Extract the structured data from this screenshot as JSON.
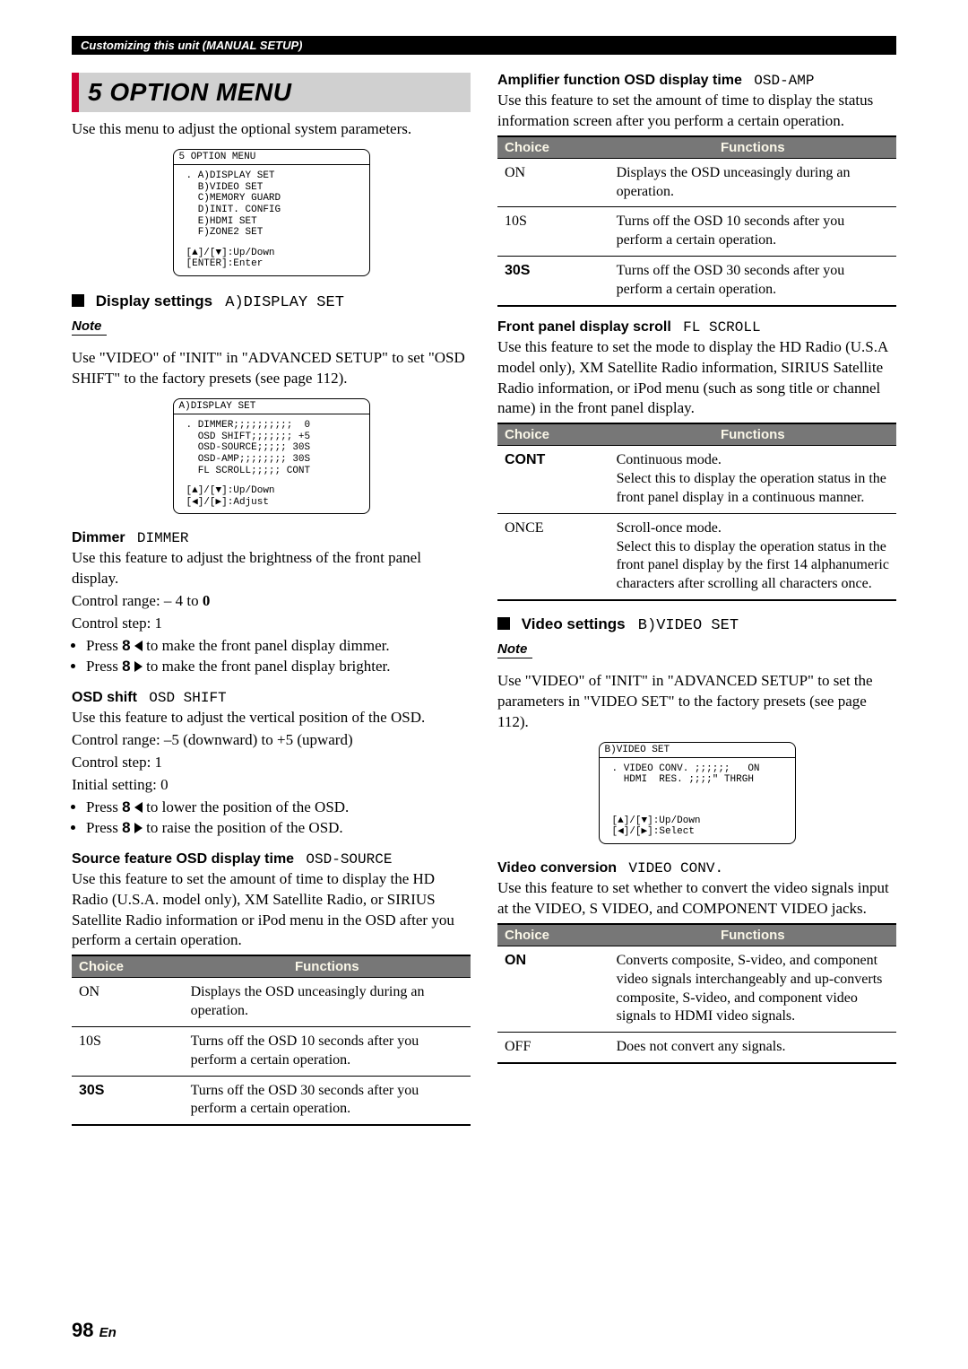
{
  "header": "Customizing this unit (MANUAL SETUP)",
  "title": "5 OPTION MENU",
  "intro_left": "Use this menu to adjust the optional system parameters.",
  "osd1": {
    "title": "5 OPTION MENU",
    "lines": ". A)DISPLAY SET\n  B)VIDEO SET\n  C)MEMORY GUARD\n  D)INIT. CONFIG\n  E)HDMI SET\n  F)ZONE2 SET",
    "nav": "[▲]/[▼]:Up/Down\n[ENTER]:Enter"
  },
  "display_settings": {
    "label": "Display settings",
    "mono": "A)DISPLAY SET"
  },
  "note1": "Note",
  "note1_body": "Use \"VIDEO\" of \"INIT\" in \"ADVANCED SETUP\" to set \"OSD SHIFT\" to the factory presets (see page 112).",
  "osd2": {
    "title": "A)DISPLAY SET",
    "lines": ". DIMMER;;;;;;;;;;  0\n  OSD SHIFT;;;;;;; +5\n  OSD-SOURCE;;;;; 30S\n  OSD-AMP;;;;;;;; 30S\n  FL SCROLL;;;;; CONT",
    "nav": "[▲]/[▼]:Up/Down\n[◀]/[▶]:Adjust"
  },
  "dimmer": {
    "title": "Dimmer",
    "mono": "DIMMER",
    "p1": "Use this feature to adjust the brightness of the front panel display.",
    "range_label": "Control range: – 4 to ",
    "range_bold": "0",
    "step": "Control step: 1",
    "b1a": "Press ",
    "b1key": "8",
    "b1b": " to make the front panel display dimmer.",
    "b2a": "Press ",
    "b2key": "8",
    "b2b": " to make the front panel display brighter."
  },
  "osd_shift": {
    "title": "OSD shift",
    "mono": "OSD SHIFT",
    "p1": "Use this feature to adjust the vertical position of the OSD.",
    "range": "Control range: –5 (downward) to +5 (upward)",
    "step": "Control step: 1",
    "init": "Initial setting: 0",
    "b1a": "Press ",
    "b1key": "8",
    "b1b": " to lower the position of the OSD.",
    "b2a": "Press ",
    "b2key": "8",
    "b2b": " to raise the position of the OSD."
  },
  "osd_source": {
    "title": "Source feature OSD display time",
    "mono": "OSD-SOURCE",
    "p1": "Use this feature to set the amount of time to display the HD Radio (U.S.A. model only), XM Satellite Radio, or SIRIUS Satellite Radio information or iPod menu in the OSD after you perform a certain operation."
  },
  "table_headers": {
    "choice": "Choice",
    "functions": "Functions"
  },
  "table_osd_source": [
    {
      "c": "ON",
      "bold": false,
      "f": "Displays the OSD unceasingly during an operation."
    },
    {
      "c": "10S",
      "bold": false,
      "f": "Turns off the OSD 10 seconds after you perform a certain operation."
    },
    {
      "c": "30S",
      "bold": true,
      "f": "Turns off the OSD 30 seconds after you perform a certain operation."
    }
  ],
  "osd_amp": {
    "title": "Amplifier function OSD display time",
    "mono": "OSD-AMP",
    "p1": "Use this feature to set the amount of time to display the status information screen after you perform a certain operation."
  },
  "table_osd_amp": [
    {
      "c": "ON",
      "bold": false,
      "f": "Displays the OSD unceasingly during an operation."
    },
    {
      "c": "10S",
      "bold": false,
      "f": "Turns off the OSD 10 seconds after you perform a certain operation."
    },
    {
      "c": "30S",
      "bold": true,
      "f": "Turns off the OSD 30 seconds after you perform a certain operation."
    }
  ],
  "fl_scroll": {
    "title": "Front panel display scroll",
    "mono": "FL SCROLL",
    "p1": "Use this feature to set the mode to display the HD Radio (U.S.A model only), XM Satellite Radio information, SIRIUS Satellite Radio information, or iPod menu (such as song title or channel name) in the front panel display."
  },
  "table_fl_scroll": [
    {
      "c": "CONT",
      "bold": true,
      "f": "Continuous mode.\nSelect this to display the operation status in the front panel display in a continuous manner."
    },
    {
      "c": "ONCE",
      "bold": false,
      "f": "Scroll-once mode.\nSelect this to display the operation status in the front panel display by the first 14 alphanumeric characters after scrolling all characters once."
    }
  ],
  "video_settings": {
    "label": "Video settings",
    "mono": "B)VIDEO SET"
  },
  "note2": "Note",
  "note2_body": "Use \"VIDEO\" of \"INIT\" in \"ADVANCED SETUP\" to set the parameters in \"VIDEO SET\" to the factory presets (see page 112).",
  "osd3": {
    "title": "B)VIDEO SET",
    "lines": ". VIDEO CONV. ;;;;;;   ON\n  HDMI  RES. ;;;;\" THRGH",
    "nav": "[▲]/[▼]:Up/Down\n[◀]/[▶]:Select"
  },
  "video_conv": {
    "title": "Video conversion",
    "mono": "VIDEO CONV.",
    "p1": "Use this feature to set whether to convert the video signals input at the VIDEO, S VIDEO, and COMPONENT VIDEO jacks."
  },
  "table_video_conv": [
    {
      "c": "ON",
      "bold": true,
      "f": "Converts composite, S-video, and component video signals interchangeably and up-converts composite, S-video, and component video signals to HDMI video signals."
    },
    {
      "c": "OFF",
      "bold": false,
      "f": "Does not convert any signals."
    }
  ],
  "page_num": "98",
  "page_en": "En"
}
